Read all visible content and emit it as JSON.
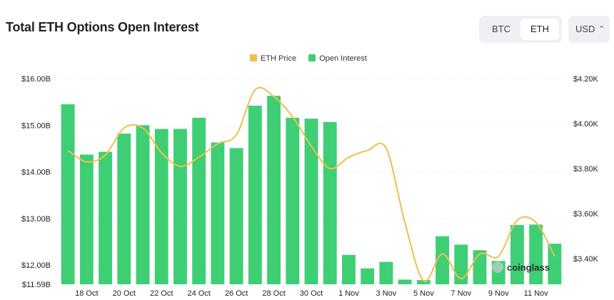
{
  "header": {
    "title": "Total ETH Options Open Interest",
    "toggle": {
      "btc_label": "BTC",
      "eth_label": "ETH",
      "selected": "ETH"
    },
    "currency": {
      "value": "USD",
      "chevron": "⌃⌄"
    }
  },
  "chart_data": {
    "type": "bar+line",
    "title": "Total ETH Options Open Interest",
    "legend": [
      {
        "name": "ETH Price",
        "color": "#f0bf4c",
        "type": "line"
      },
      {
        "name": "Open Interest",
        "color": "#3ecf74",
        "type": "bar"
      }
    ],
    "legend_position": "top-center",
    "x_tick_labels": [
      "18 Oct",
      "20 Oct",
      "22 Oct",
      "24 Oct",
      "26 Oct",
      "28 Oct",
      "30 Oct",
      "1 Nov",
      "3 Nov",
      "5 Nov",
      "7 Nov",
      "9 Nov",
      "11 Nov"
    ],
    "dates": [
      "17 Oct",
      "18 Oct",
      "19 Oct",
      "20 Oct",
      "21 Oct",
      "22 Oct",
      "23 Oct",
      "24 Oct",
      "25 Oct",
      "26 Oct",
      "27 Oct",
      "28 Oct",
      "29 Oct",
      "30 Oct",
      "31 Oct",
      "1 Nov",
      "2 Nov",
      "3 Nov",
      "4 Nov",
      "5 Nov",
      "6 Nov",
      "7 Nov",
      "8 Nov",
      "9 Nov",
      "10 Nov",
      "11 Nov",
      "12 Nov"
    ],
    "series": [
      {
        "name": "Open Interest",
        "unit": "USD billions",
        "axis": "left",
        "values": [
          15.45,
          14.37,
          14.43,
          14.82,
          15.0,
          14.92,
          14.92,
          15.16,
          14.63,
          14.51,
          15.42,
          15.63,
          15.16,
          15.14,
          15.07,
          12.22,
          11.93,
          12.07,
          11.69,
          11.68,
          12.62,
          12.44,
          12.32,
          12.09,
          12.86,
          12.87,
          12.46
        ]
      },
      {
        "name": "ETH Price",
        "unit": "USD",
        "axis": "right",
        "values": [
          3880,
          3830,
          3860,
          3980,
          3980,
          3870,
          3810,
          3850,
          3910,
          3950,
          4150,
          4120,
          4030,
          3900,
          3800,
          3850,
          3880,
          3890,
          3560,
          3300,
          3420,
          3310,
          3420,
          3410,
          3570,
          3560,
          3410
        ]
      }
    ],
    "y_left": {
      "ticks": [
        "$16.00B",
        "$15.00B",
        "$14.00B",
        "$13.00B",
        "$12.00B",
        "$11.59B"
      ],
      "tick_values": [
        16.0,
        15.0,
        14.0,
        13.0,
        12.0,
        11.59
      ],
      "range": [
        11.59,
        16.0
      ]
    },
    "y_right": {
      "ticks": [
        "$4.20K",
        "$4.00K",
        "$3.80K",
        "$3.60K",
        "$3.40K"
      ],
      "tick_values": [
        4200,
        4000,
        3800,
        3600,
        3400
      ],
      "range": [
        3285,
        4200
      ]
    },
    "grid": true,
    "watermark": "coinglass"
  }
}
